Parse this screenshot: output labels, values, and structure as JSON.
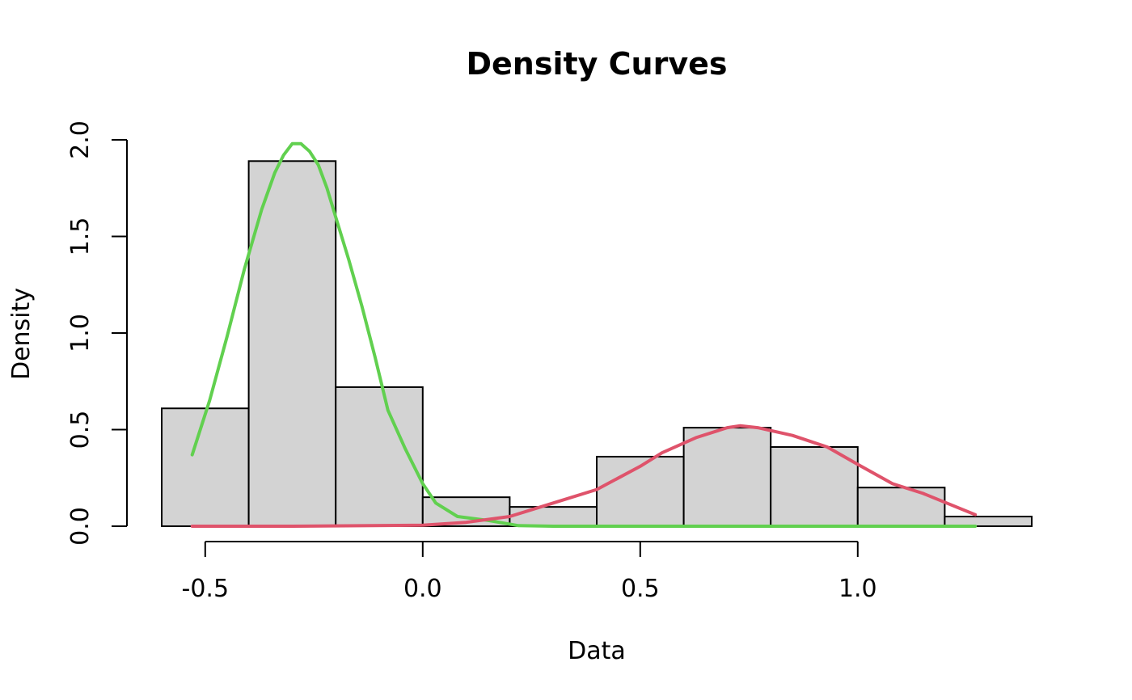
{
  "chart_data": {
    "type": "histogram",
    "title": "Density Curves",
    "xlabel": "Data",
    "ylabel": "Density",
    "xlim": [
      -0.6,
      1.4
    ],
    "ylim": [
      0,
      2.0
    ],
    "x_ticks": [
      -0.5,
      0.0,
      0.5,
      1.0
    ],
    "x_tick_labels": [
      "-0.5",
      "0.0",
      "0.5",
      "1.0"
    ],
    "x_axis_range": [
      -0.5,
      1.0
    ],
    "y_ticks": [
      0.0,
      0.5,
      1.0,
      1.5,
      2.0
    ],
    "y_tick_labels": [
      "0.0",
      "0.5",
      "1.0",
      "1.5",
      "2.0"
    ],
    "y_axis_range": [
      0.0,
      2.0
    ],
    "grid": false,
    "bar_color": "#d3d3d3",
    "bins": [
      {
        "x0": -0.6,
        "x1": -0.4,
        "density": 0.61
      },
      {
        "x0": -0.4,
        "x1": -0.2,
        "density": 1.89
      },
      {
        "x0": -0.2,
        "x1": 0.0,
        "density": 0.72
      },
      {
        "x0": 0.0,
        "x1": 0.2,
        "density": 0.15
      },
      {
        "x0": 0.2,
        "x1": 0.4,
        "density": 0.1
      },
      {
        "x0": 0.4,
        "x1": 0.6,
        "density": 0.36
      },
      {
        "x0": 0.6,
        "x1": 0.8,
        "density": 0.51
      },
      {
        "x0": 0.8,
        "x1": 1.0,
        "density": 0.41
      },
      {
        "x0": 1.0,
        "x1": 1.2,
        "density": 0.2
      },
      {
        "x0": 1.2,
        "x1": 1.4,
        "density": 0.05
      }
    ],
    "series": [
      {
        "color": "#61d04f",
        "x": [
          -0.53,
          -0.49,
          -0.45,
          -0.41,
          -0.37,
          -0.34,
          -0.32,
          -0.3,
          -0.28,
          -0.26,
          -0.24,
          -0.22,
          -0.2,
          -0.17,
          -0.14,
          -0.11,
          -0.08,
          -0.04,
          0.0,
          0.03,
          0.08,
          0.15,
          0.22,
          0.3,
          0.5,
          0.8,
          1.0,
          1.27
        ],
        "y": [
          0.37,
          0.65,
          0.98,
          1.33,
          1.64,
          1.83,
          1.92,
          1.98,
          1.98,
          1.94,
          1.87,
          1.75,
          1.6,
          1.38,
          1.14,
          0.88,
          0.6,
          0.4,
          0.22,
          0.12,
          0.05,
          0.03,
          0.003,
          0.0,
          0.0,
          0.0,
          0.0,
          0.0
        ]
      },
      {
        "color": "#df536b",
        "x": [
          -0.53,
          -0.3,
          0.0,
          0.1,
          0.2,
          0.3,
          0.4,
          0.5,
          0.55,
          0.63,
          0.7,
          0.73,
          0.77,
          0.85,
          0.93,
          1.0,
          1.08,
          1.15,
          1.27
        ],
        "y": [
          0.0,
          0.0,
          0.005,
          0.02,
          0.05,
          0.12,
          0.19,
          0.31,
          0.38,
          0.46,
          0.51,
          0.52,
          0.51,
          0.47,
          0.41,
          0.32,
          0.22,
          0.17,
          0.06
        ]
      }
    ]
  }
}
